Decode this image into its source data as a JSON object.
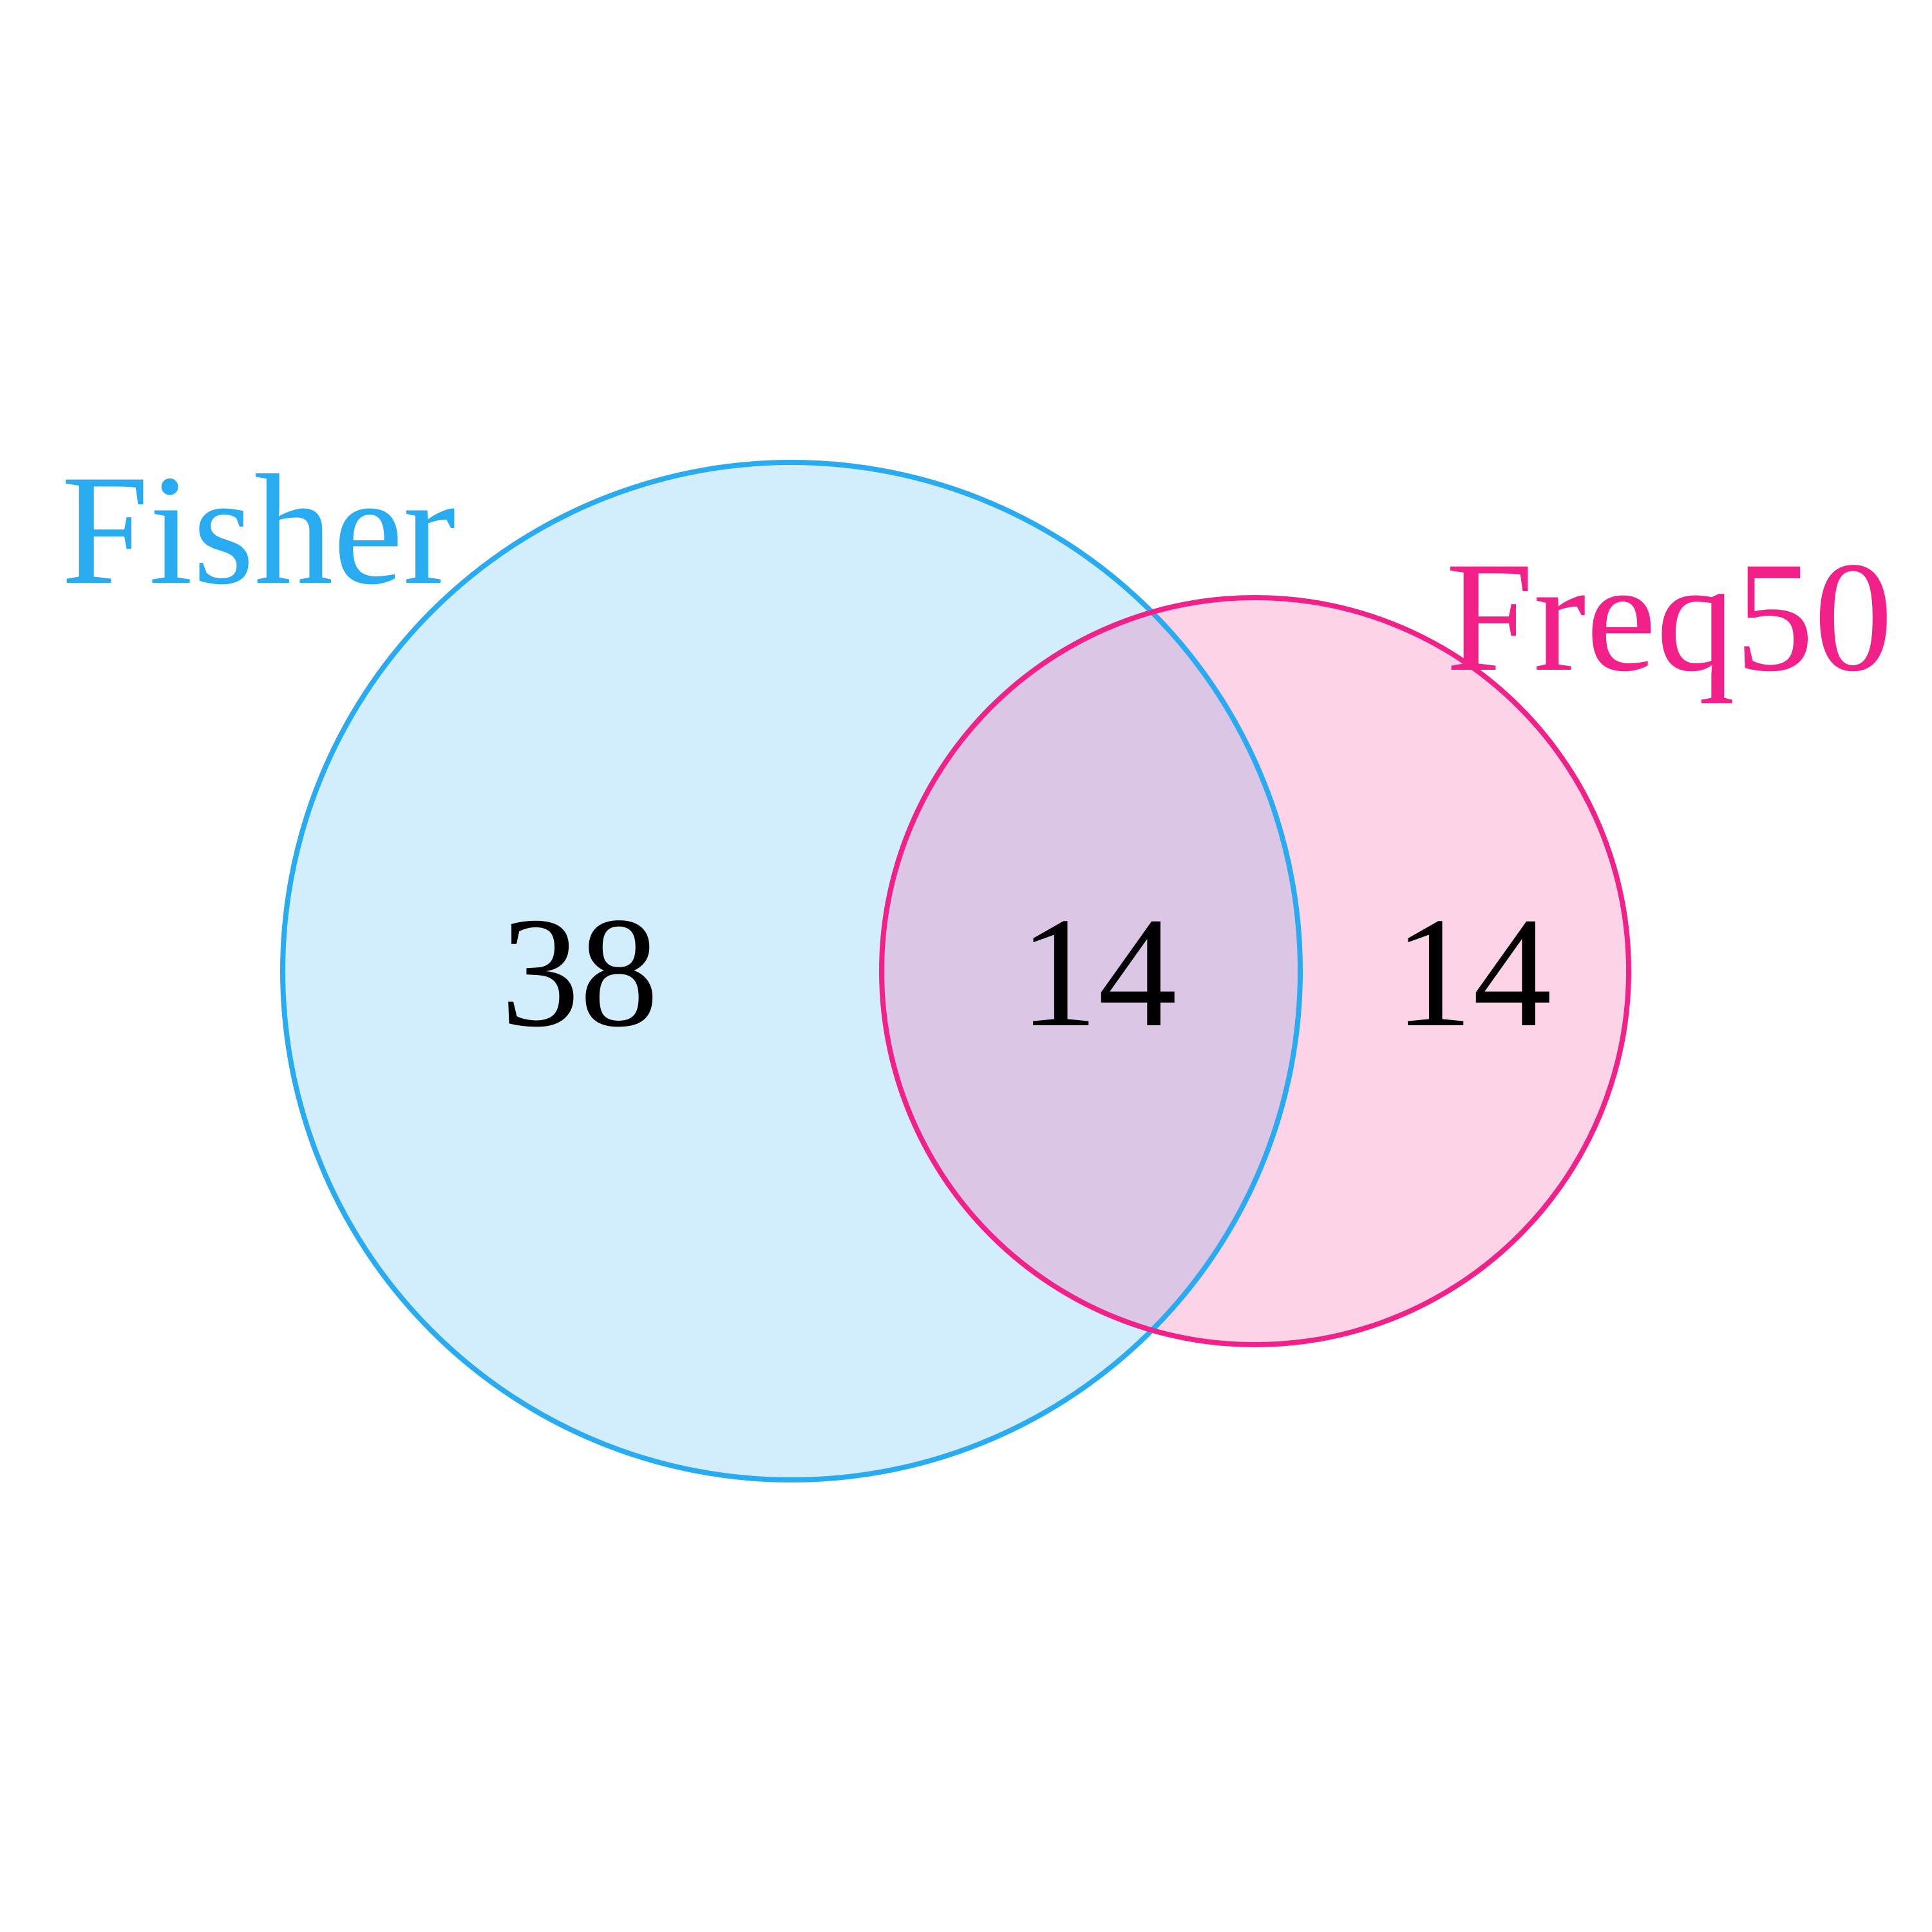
{
  "diagram": {
    "type": "venn",
    "sets": [
      {
        "id": "fisher",
        "name": "Fisher",
        "color": "#29abf2",
        "fill": "#d2edfb"
      },
      {
        "id": "freq50",
        "name": "Freq50",
        "color": "#f2218a",
        "fill": "#fdd3e7"
      }
    ],
    "overlap_fill": "#dcc6e6",
    "regions": {
      "fisher_only": "38",
      "intersection": "14",
      "freq50_only": "14"
    }
  }
}
